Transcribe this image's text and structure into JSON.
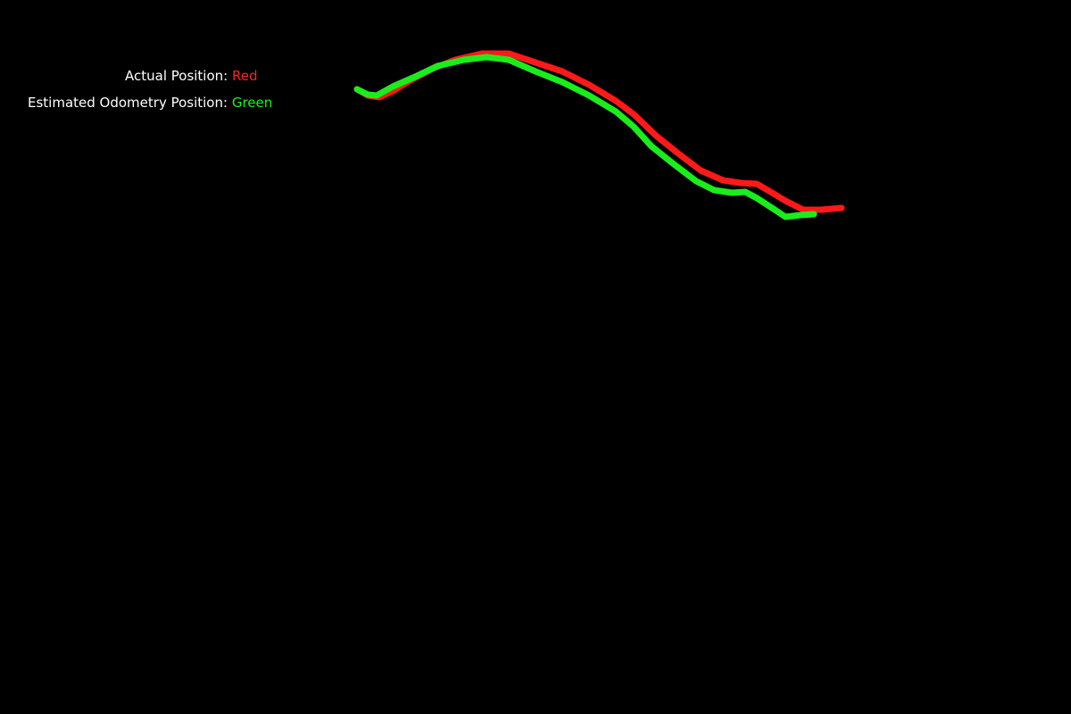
{
  "legend": {
    "actual_label": "Actual Position:",
    "actual_color_name": "Red",
    "estimated_label": "Estimated Odometry Position:",
    "estimated_color_name": "Green"
  },
  "colors": {
    "background": "#000000",
    "text": "#ffffff",
    "actual": "#ff1a1a",
    "estimated": "#1aee1a"
  }
}
